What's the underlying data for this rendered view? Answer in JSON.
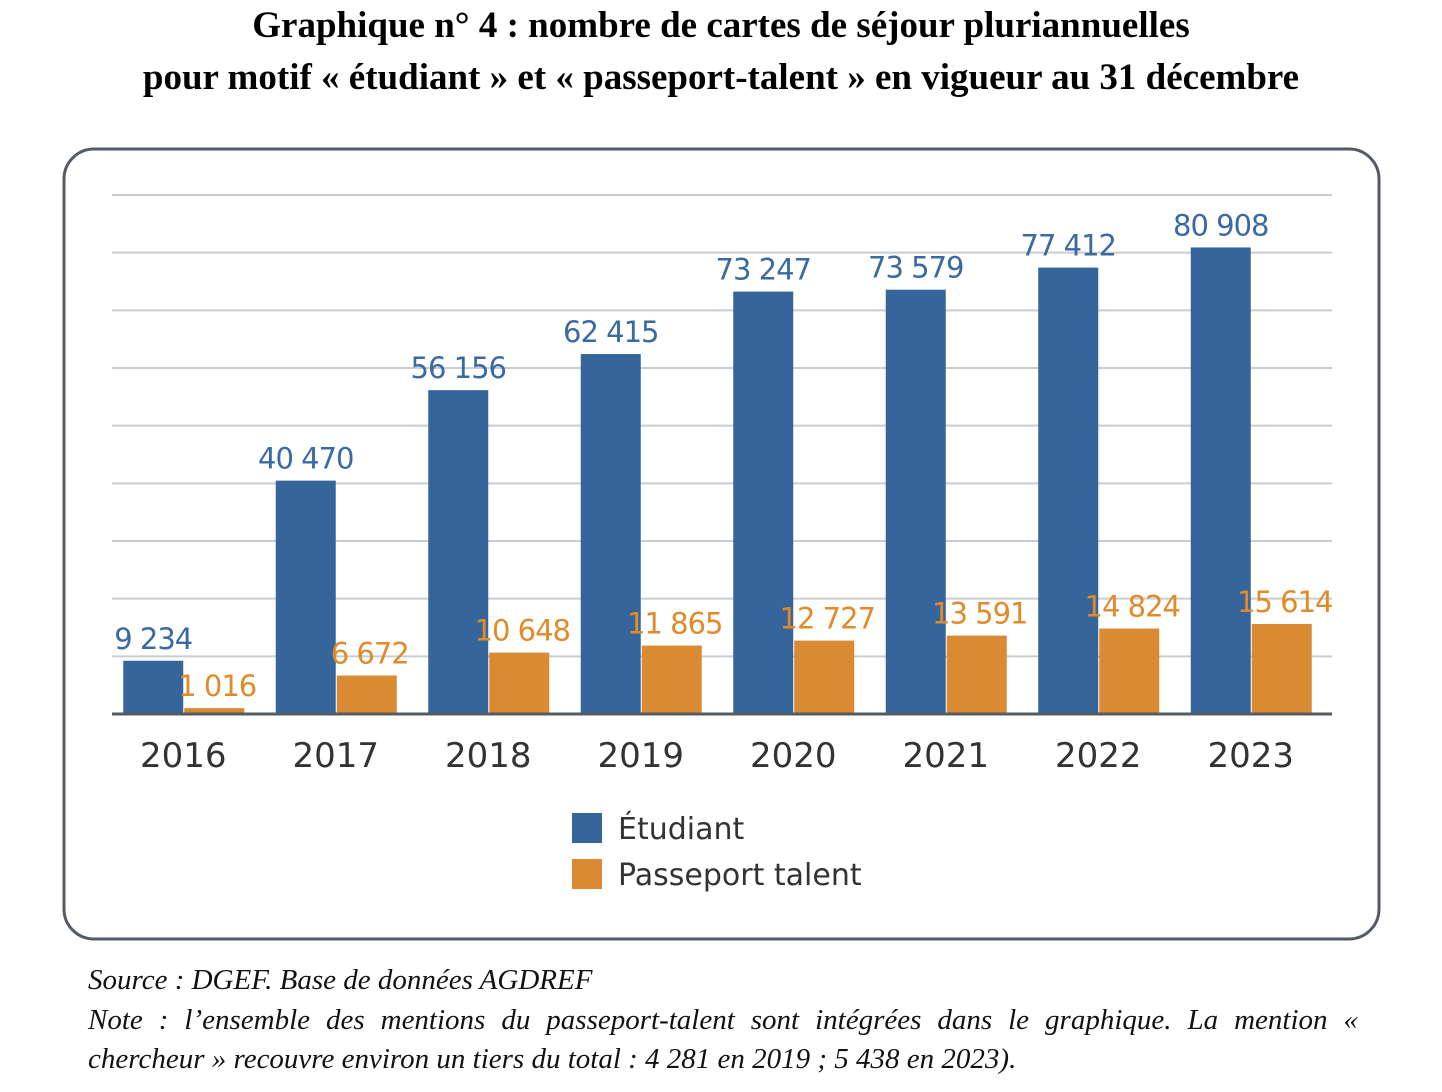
{
  "chart_data": {
    "type": "bar",
    "title": "Graphique n° 4 : nombre de cartes de séjour pluriannuelles",
    "subtitle": "pour motif « étudiant » et « passeport-talent » en vigueur au 31 décembre",
    "categories": [
      "2016",
      "2017",
      "2018",
      "2019",
      "2020",
      "2021",
      "2022",
      "2023"
    ],
    "series": [
      {
        "name": "Étudiant",
        "color": "#35659a",
        "label_color": "#3a6aa2",
        "values": [
          9234,
          40470,
          56156,
          62415,
          73247,
          73579,
          77412,
          80908
        ],
        "labels": [
          "9 234",
          "40 470",
          "56 156",
          "62 415",
          "73 247",
          "73 579",
          "77 412",
          "80 908"
        ]
      },
      {
        "name": "Passeport talent",
        "color": "#d98a33",
        "label_color": "#e08a2a",
        "values": [
          1016,
          6672,
          10648,
          11865,
          12727,
          13591,
          14824,
          15614
        ],
        "labels": [
          "1 016",
          "6 672",
          "10 648",
          "11 865",
          "12 727",
          "13 591",
          "14 824",
          "15 614"
        ]
      }
    ],
    "xlabel": "",
    "ylabel": "",
    "ylim": [
      0,
      90000
    ],
    "grid": true,
    "legend": "bottom-center"
  },
  "footer": {
    "source": "Source : DGEF. Base de données AGDREF",
    "note": "Note : l’ensemble des mentions du passeport-talent sont intégrées dans le graphique. La mention « chercheur » recouvre environ un tiers du total : 4 281 en 2019 ; 5 438 en 2023)."
  }
}
